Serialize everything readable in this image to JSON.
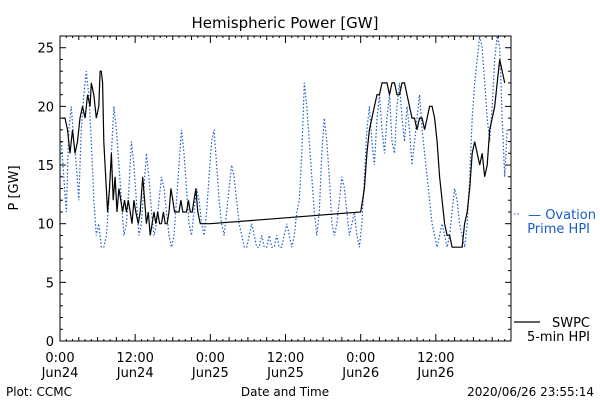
{
  "chart_data": {
    "type": "line",
    "title": "Hemispheric Power [GW]",
    "xlabel": "Date and Time",
    "ylabel": "P [GW]",
    "ylim": [
      0,
      26
    ],
    "xlim_hours": [
      0,
      72
    ],
    "yticks": [
      0,
      5,
      10,
      15,
      20,
      25
    ],
    "xticks": [
      {
        "hour": 0,
        "time": "0:00",
        "date": "Jun24"
      },
      {
        "hour": 12,
        "time": "12:00",
        "date": "Jun24"
      },
      {
        "hour": 24,
        "time": "0:00",
        "date": "Jun25"
      },
      {
        "hour": 36,
        "time": "12:00",
        "date": "Jun25"
      },
      {
        "hour": 48,
        "time": "0:00",
        "date": "Jun26"
      },
      {
        "hour": 60,
        "time": "12:00",
        "date": "Jun26"
      }
    ],
    "series": [
      {
        "name": "SWPC 5-min HPI",
        "style": "solid",
        "color": "#000000",
        "legend": [
          "SWPC",
          "5-min HPI"
        ],
        "points": [
          [
            0.3,
            19
          ],
          [
            0.8,
            19
          ],
          [
            1.2,
            18
          ],
          [
            1.6,
            16
          ],
          [
            2.0,
            18
          ],
          [
            2.4,
            16
          ],
          [
            2.8,
            17
          ],
          [
            3.2,
            19
          ],
          [
            3.6,
            20
          ],
          [
            4.0,
            19
          ],
          [
            4.4,
            21
          ],
          [
            4.8,
            20
          ],
          [
            5.0,
            22
          ],
          [
            5.4,
            21
          ],
          [
            5.8,
            19
          ],
          [
            6.2,
            20
          ],
          [
            6.4,
            23
          ],
          [
            6.6,
            23
          ],
          [
            6.8,
            22
          ],
          [
            7.0,
            17
          ],
          [
            7.3,
            14
          ],
          [
            7.6,
            11
          ],
          [
            7.9,
            13
          ],
          [
            8.2,
            16
          ],
          [
            8.5,
            12
          ],
          [
            8.8,
            14
          ],
          [
            9.1,
            11
          ],
          [
            9.4,
            13
          ],
          [
            9.7,
            12
          ],
          [
            10.0,
            11
          ],
          [
            10.3,
            12
          ],
          [
            10.6,
            11
          ],
          [
            10.9,
            12
          ],
          [
            11.2,
            11
          ],
          [
            11.5,
            10
          ],
          [
            11.8,
            12
          ],
          [
            12.1,
            11
          ],
          [
            12.5,
            10
          ],
          [
            12.8,
            11
          ],
          [
            13.2,
            14
          ],
          [
            13.5,
            12
          ],
          [
            13.8,
            10
          ],
          [
            14.1,
            11
          ],
          [
            14.4,
            9
          ],
          [
            14.7,
            10
          ],
          [
            15.0,
            11
          ],
          [
            15.3,
            10
          ],
          [
            15.6,
            11
          ],
          [
            15.9,
            10
          ],
          [
            16.2,
            10
          ],
          [
            16.5,
            11
          ],
          [
            16.8,
            10
          ],
          [
            17.1,
            10
          ],
          [
            17.4,
            11
          ],
          [
            17.7,
            13
          ],
          [
            18.0,
            12
          ],
          [
            18.3,
            11
          ],
          [
            18.6,
            11
          ],
          [
            19.0,
            11
          ],
          [
            19.3,
            12
          ],
          [
            19.6,
            11
          ],
          [
            19.9,
            11
          ],
          [
            20.2,
            11
          ],
          [
            20.5,
            12
          ],
          [
            20.8,
            11
          ],
          [
            21.1,
            11
          ],
          [
            21.4,
            12
          ],
          [
            21.7,
            13
          ],
          [
            22.0,
            11
          ],
          [
            22.4,
            10
          ],
          [
            22.8,
            10
          ],
          [
            24.0,
            10
          ],
          [
            48.0,
            11
          ],
          [
            48.6,
            13
          ],
          [
            49.0,
            16
          ],
          [
            49.4,
            18
          ],
          [
            49.8,
            19
          ],
          [
            50.2,
            20
          ],
          [
            50.6,
            21
          ],
          [
            51.0,
            21
          ],
          [
            51.4,
            22
          ],
          [
            51.8,
            22
          ],
          [
            52.2,
            22
          ],
          [
            52.6,
            21
          ],
          [
            53.0,
            22
          ],
          [
            53.4,
            22
          ],
          [
            53.8,
            21
          ],
          [
            54.2,
            21
          ],
          [
            54.6,
            22
          ],
          [
            55.0,
            22
          ],
          [
            55.4,
            21
          ],
          [
            55.8,
            20
          ],
          [
            56.2,
            19
          ],
          [
            56.6,
            19
          ],
          [
            57.0,
            18
          ],
          [
            57.4,
            19
          ],
          [
            57.8,
            19
          ],
          [
            58.2,
            18
          ],
          [
            58.6,
            19
          ],
          [
            59.0,
            20
          ],
          [
            59.4,
            20
          ],
          [
            59.8,
            19
          ],
          [
            60.2,
            17
          ],
          [
            60.6,
            14
          ],
          [
            61.0,
            12
          ],
          [
            61.4,
            10
          ],
          [
            61.8,
            9
          ],
          [
            62.2,
            9
          ],
          [
            62.6,
            8
          ],
          [
            63.0,
            8
          ],
          [
            63.6,
            8
          ],
          [
            64.2,
            8
          ],
          [
            64.6,
            10
          ],
          [
            65.0,
            11
          ],
          [
            65.4,
            13
          ],
          [
            65.8,
            16
          ],
          [
            66.2,
            17
          ],
          [
            66.6,
            16
          ],
          [
            67.0,
            15
          ],
          [
            67.4,
            16
          ],
          [
            67.8,
            14
          ],
          [
            68.2,
            15
          ],
          [
            68.6,
            18
          ],
          [
            69.0,
            19
          ],
          [
            69.4,
            20
          ],
          [
            69.8,
            22
          ],
          [
            70.2,
            24
          ],
          [
            70.6,
            23
          ],
          [
            71.0,
            22
          ]
        ]
      },
      {
        "name": "Ovation Prime HPI",
        "style": "dotted",
        "color": "#1a5cc8",
        "legend": [
          "— Ovation",
          "Prime HPI"
        ],
        "points": [
          [
            0.2,
            17
          ],
          [
            0.6,
            14
          ],
          [
            1.0,
            11
          ],
          [
            1.4,
            18
          ],
          [
            1.8,
            20
          ],
          [
            2.2,
            17
          ],
          [
            2.6,
            15
          ],
          [
            3.0,
            12
          ],
          [
            3.4,
            18
          ],
          [
            3.8,
            21
          ],
          [
            4.2,
            23
          ],
          [
            4.6,
            21
          ],
          [
            5.0,
            17
          ],
          [
            5.4,
            12
          ],
          [
            5.8,
            9
          ],
          [
            6.2,
            10
          ],
          [
            6.6,
            8
          ],
          [
            7.0,
            8
          ],
          [
            7.4,
            9
          ],
          [
            7.8,
            12
          ],
          [
            8.2,
            16
          ],
          [
            8.6,
            20
          ],
          [
            9.0,
            18
          ],
          [
            9.4,
            15
          ],
          [
            9.8,
            12
          ],
          [
            10.2,
            9
          ],
          [
            10.6,
            10
          ],
          [
            11.0,
            13
          ],
          [
            11.4,
            17
          ],
          [
            11.8,
            15
          ],
          [
            12.2,
            12
          ],
          [
            12.6,
            9
          ],
          [
            13.0,
            10
          ],
          [
            13.4,
            13
          ],
          [
            13.8,
            16
          ],
          [
            14.2,
            14
          ],
          [
            14.6,
            11
          ],
          [
            15.0,
            9
          ],
          [
            15.4,
            10
          ],
          [
            15.8,
            12
          ],
          [
            16.2,
            14
          ],
          [
            16.6,
            13
          ],
          [
            17.0,
            11
          ],
          [
            17.4,
            9
          ],
          [
            17.8,
            8
          ],
          [
            18.2,
            9
          ],
          [
            18.6,
            12
          ],
          [
            19.0,
            15
          ],
          [
            19.4,
            18
          ],
          [
            19.8,
            16
          ],
          [
            20.2,
            13
          ],
          [
            20.6,
            10
          ],
          [
            21.0,
            9
          ],
          [
            21.4,
            11
          ],
          [
            21.8,
            13
          ],
          [
            22.2,
            12
          ],
          [
            22.6,
            10
          ],
          [
            23.0,
            9
          ],
          [
            23.4,
            11
          ],
          [
            23.8,
            14
          ],
          [
            24.2,
            17
          ],
          [
            24.6,
            18
          ],
          [
            25.0,
            15
          ],
          [
            25.4,
            12
          ],
          [
            25.8,
            10
          ],
          [
            26.2,
            9
          ],
          [
            26.6,
            11
          ],
          [
            27.0,
            13
          ],
          [
            27.4,
            15
          ],
          [
            27.8,
            14
          ],
          [
            28.2,
            12
          ],
          [
            28.6,
            10
          ],
          [
            29.0,
            9
          ],
          [
            29.4,
            8
          ],
          [
            29.8,
            8
          ],
          [
            30.2,
            9
          ],
          [
            30.6,
            10
          ],
          [
            31.0,
            9
          ],
          [
            31.4,
            8
          ],
          [
            31.8,
            8
          ],
          [
            32.2,
            9
          ],
          [
            32.6,
            8
          ],
          [
            33.0,
            8
          ],
          [
            33.4,
            9
          ],
          [
            33.8,
            8
          ],
          [
            34.2,
            8
          ],
          [
            34.6,
            9
          ],
          [
            35.0,
            8
          ],
          [
            35.4,
            8
          ],
          [
            35.8,
            9
          ],
          [
            36.2,
            10
          ],
          [
            36.6,
            9
          ],
          [
            37.0,
            8
          ],
          [
            37.4,
            9
          ],
          [
            37.8,
            11
          ],
          [
            38.2,
            12
          ],
          [
            38.6,
            16
          ],
          [
            39.0,
            22
          ],
          [
            39.4,
            20
          ],
          [
            39.8,
            17
          ],
          [
            40.2,
            14
          ],
          [
            40.6,
            11
          ],
          [
            41.0,
            9
          ],
          [
            41.4,
            11
          ],
          [
            41.8,
            16
          ],
          [
            42.2,
            19
          ],
          [
            42.6,
            17
          ],
          [
            43.0,
            14
          ],
          [
            43.4,
            10
          ],
          [
            43.8,
            9
          ],
          [
            44.2,
            10
          ],
          [
            44.6,
            12
          ],
          [
            45.0,
            14
          ],
          [
            45.4,
            13
          ],
          [
            45.8,
            11
          ],
          [
            46.2,
            9
          ],
          [
            46.6,
            10
          ],
          [
            47.0,
            11
          ],
          [
            47.4,
            9
          ],
          [
            47.8,
            8
          ],
          [
            48.2,
            10
          ],
          [
            48.6,
            14
          ],
          [
            49.0,
            18
          ],
          [
            49.4,
            20
          ],
          [
            49.8,
            17
          ],
          [
            50.2,
            15
          ],
          [
            50.6,
            19
          ],
          [
            51.0,
            21
          ],
          [
            51.4,
            18
          ],
          [
            51.8,
            16
          ],
          [
            52.2,
            19
          ],
          [
            52.6,
            21
          ],
          [
            53.0,
            17
          ],
          [
            53.4,
            16
          ],
          [
            53.8,
            20
          ],
          [
            54.2,
            22
          ],
          [
            54.6,
            19
          ],
          [
            55.0,
            17
          ],
          [
            55.4,
            20
          ],
          [
            55.8,
            18
          ],
          [
            56.2,
            15
          ],
          [
            56.6,
            17
          ],
          [
            57.0,
            19
          ],
          [
            57.4,
            21
          ],
          [
            57.8,
            18
          ],
          [
            58.2,
            16
          ],
          [
            58.6,
            14
          ],
          [
            59.0,
            12
          ],
          [
            59.4,
            10
          ],
          [
            59.8,
            9
          ],
          [
            60.2,
            8
          ],
          [
            60.6,
            9
          ],
          [
            61.0,
            10
          ],
          [
            61.4,
            9
          ],
          [
            61.8,
            8
          ],
          [
            62.2,
            9
          ],
          [
            62.6,
            11
          ],
          [
            63.0,
            13
          ],
          [
            63.4,
            12
          ],
          [
            63.8,
            10
          ],
          [
            64.2,
            9
          ],
          [
            64.6,
            8
          ],
          [
            65.0,
            10
          ],
          [
            65.4,
            14
          ],
          [
            65.8,
            19
          ],
          [
            66.2,
            22
          ],
          [
            66.6,
            24
          ],
          [
            67.0,
            26
          ],
          [
            67.4,
            25
          ],
          [
            67.8,
            22
          ],
          [
            68.2,
            19
          ],
          [
            68.6,
            17
          ],
          [
            69.0,
            20
          ],
          [
            69.4,
            24
          ],
          [
            69.8,
            26
          ],
          [
            70.2,
            25
          ],
          [
            70.6,
            19
          ],
          [
            71.0,
            14
          ],
          [
            71.4,
            18
          ]
        ]
      }
    ]
  },
  "footer": {
    "left": "Plot: CCMC",
    "right": "2020/06/26 23:55:14"
  }
}
